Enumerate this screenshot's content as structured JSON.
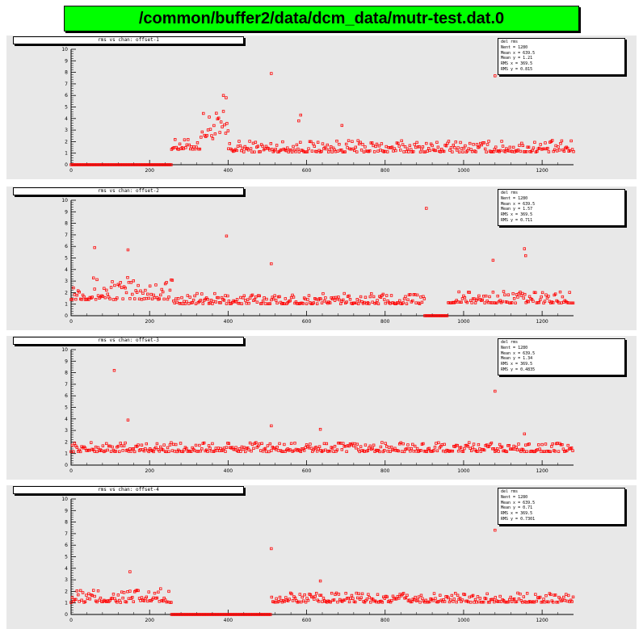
{
  "title": "/common/buffer2/data/dcm_data/mutr-test.dat.0",
  "colors": {
    "title_bg": "#00ff00",
    "pad_bg": "#e8e8e8",
    "marker": "#ff0000"
  },
  "chart_data": [
    {
      "type": "scatter",
      "title": "rms vs chan: offset-1",
      "stats": [
        "del rms",
        "Nent = 1280",
        "Mean x = 639.5",
        "Mean y = 1.21",
        "RMS x = 369.5",
        "RMS y = 0.815"
      ],
      "xlim": [
        0,
        1280
      ],
      "ylim": [
        0,
        10
      ],
      "xticks": [
        "0",
        "200",
        "400",
        "600",
        "800",
        "1000",
        "1200"
      ],
      "yticks": [
        "0",
        "1",
        "2",
        "3",
        "4",
        "5",
        "6",
        "7",
        "8",
        "9",
        "10"
      ],
      "segments": [
        {
          "x": [
            0,
            255
          ],
          "base": 0.0,
          "jitter": 0.0
        },
        {
          "x": [
            256,
            330
          ],
          "base": 1.6,
          "jitter": 0.9
        },
        {
          "x": [
            331,
            400
          ],
          "base": 3.0,
          "jitter": 2.5
        },
        {
          "x": [
            401,
            1280
          ],
          "base": 1.4,
          "jitter": 1.0
        }
      ],
      "outliers": [
        [
          510,
          7.9
        ],
        [
          1080,
          7.7
        ],
        [
          388,
          6.0
        ],
        [
          395,
          5.8
        ],
        [
          585,
          4.3
        ],
        [
          690,
          3.4
        ],
        [
          580,
          3.8
        ]
      ]
    },
    {
      "type": "scatter",
      "title": "rms vs chan: offset-2",
      "stats": [
        "del rms",
        "Nent = 1280",
        "Mean x = 639.5",
        "Mean y = 1.57",
        "RMS x = 369.5",
        "RMS y = 0.711"
      ],
      "xlim": [
        0,
        1280
      ],
      "ylim": [
        0,
        10
      ],
      "xticks": [
        "0",
        "200",
        "400",
        "600",
        "800",
        "1000",
        "1200"
      ],
      "yticks": [
        "0",
        "1",
        "2",
        "3",
        "4",
        "5",
        "6",
        "7",
        "8",
        "9",
        "10"
      ],
      "segments": [
        {
          "x": [
            0,
            260
          ],
          "base": 2.0,
          "jitter": 2.0
        },
        {
          "x": [
            261,
            900
          ],
          "base": 1.3,
          "jitter": 0.9
        },
        {
          "x": [
            901,
            960
          ],
          "base": 0.0,
          "jitter": 0.0
        },
        {
          "x": [
            961,
            1280
          ],
          "base": 1.4,
          "jitter": 1.0
        }
      ],
      "outliers": [
        [
          905,
          9.3
        ],
        [
          396,
          6.9
        ],
        [
          60,
          5.9
        ],
        [
          145,
          5.7
        ],
        [
          510,
          4.5
        ],
        [
          1075,
          4.8
        ],
        [
          1155,
          5.8
        ],
        [
          1158,
          5.2
        ]
      ]
    },
    {
      "type": "scatter",
      "title": "rms vs chan: offset-3",
      "stats": [
        "del rms",
        "Nent = 1280",
        "Mean x = 639.5",
        "Mean y = 1.34",
        "RMS x = 369.5",
        "RMS y = 0.4835"
      ],
      "xlim": [
        0,
        1280
      ],
      "ylim": [
        0,
        10
      ],
      "xticks": [
        "0",
        "200",
        "400",
        "600",
        "800",
        "1000",
        "1200"
      ],
      "yticks": [
        "0",
        "1",
        "2",
        "3",
        "4",
        "5",
        "6",
        "7",
        "8",
        "9",
        "10"
      ],
      "segments": [
        {
          "x": [
            0,
            1280
          ],
          "base": 1.4,
          "jitter": 0.8
        }
      ],
      "outliers": [
        [
          110,
          8.2
        ],
        [
          1080,
          6.4
        ],
        [
          145,
          3.9
        ],
        [
          510,
          3.4
        ],
        [
          635,
          3.1
        ],
        [
          1155,
          2.7
        ]
      ]
    },
    {
      "type": "scatter",
      "title": "rms vs chan: offset-4",
      "stats": [
        "del rms",
        "Nent = 1280",
        "Mean x = 639.5",
        "Mean y = 0.71",
        "RMS x = 369.5",
        "RMS y = 0.7301"
      ],
      "xlim": [
        0,
        1280
      ],
      "ylim": [
        0,
        10
      ],
      "xticks": [
        "0",
        "200",
        "400",
        "600",
        "800",
        "1000",
        "1200"
      ],
      "yticks": [
        "0",
        "1",
        "2",
        "3",
        "4",
        "5",
        "6",
        "7",
        "8",
        "9",
        "10"
      ],
      "segments": [
        {
          "x": [
            0,
            255
          ],
          "base": 1.4,
          "jitter": 1.2
        },
        {
          "x": [
            256,
            510
          ],
          "base": 0.0,
          "jitter": 0.0
        },
        {
          "x": [
            511,
            1280
          ],
          "base": 1.3,
          "jitter": 0.8
        }
      ],
      "outliers": [
        [
          510,
          5.7
        ],
        [
          1080,
          7.3
        ],
        [
          150,
          3.7
        ],
        [
          635,
          2.9
        ]
      ]
    }
  ]
}
